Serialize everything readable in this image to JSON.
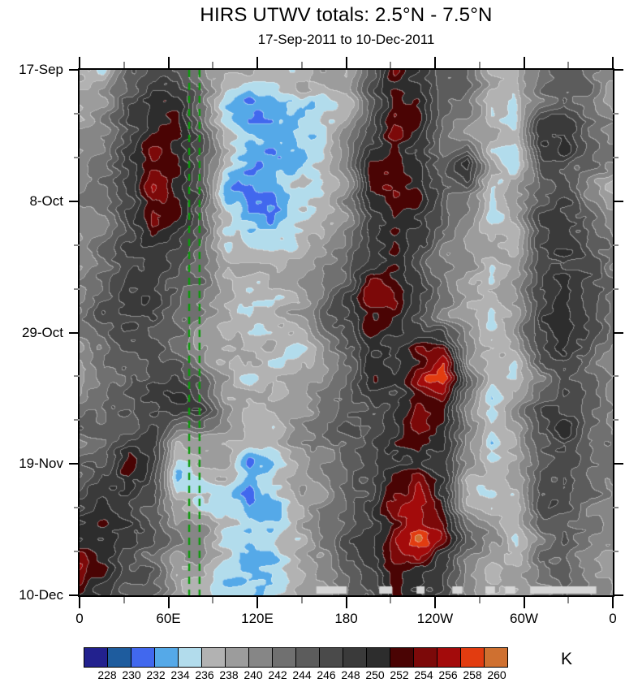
{
  "title": "HIRS UTWV totals: 2.5°N - 7.5°N",
  "subtitle": "17-Sep-2011 to 10-Dec-2011",
  "chart_data": {
    "type": "heatmap",
    "description": "Hovmoller (time-longitude) plot of HIRS upper-tropospheric water vapor brightness temperature totals, 2.5N-7.5N latitude band",
    "x_axis": {
      "range_deg": [
        0,
        360
      ],
      "ticks": [
        {
          "label": "0",
          "deg": 0
        },
        {
          "label": "60E",
          "deg": 60
        },
        {
          "label": "120E",
          "deg": 120
        },
        {
          "label": "180",
          "deg": 180
        },
        {
          "label": "120W",
          "deg": 240
        },
        {
          "label": "60W",
          "deg": 300
        },
        {
          "label": "0",
          "deg": 360
        }
      ],
      "minor_step_deg": 30
    },
    "y_axis": {
      "range_days": [
        0,
        84
      ],
      "ticks": [
        {
          "label": "17-Sep",
          "day": 0
        },
        {
          "label": "8-Oct",
          "day": 21
        },
        {
          "label": "29-Oct",
          "day": 42
        },
        {
          "label": "19-Nov",
          "day": 63
        },
        {
          "label": "10-Dec",
          "day": 84
        }
      ],
      "minor_step_days": 7
    },
    "colorbar": {
      "unit": "K",
      "tick_labels": [
        228,
        230,
        232,
        234,
        236,
        238,
        240,
        242,
        244,
        246,
        248,
        250,
        252,
        254,
        256,
        258,
        260
      ],
      "colors": [
        "#22218e",
        "#1e5c9e",
        "#4168ee",
        "#55a9e8",
        "#b2dcec",
        "#b2b2b2",
        "#9c9c9c",
        "#868686",
        "#707070",
        "#5c5c5c",
        "#4a4a4a",
        "#3a3a3a",
        "#2d2d2d",
        "#4a0404",
        "#7c0909",
        "#a30b0b",
        "#e23c10",
        "#cf7030"
      ]
    },
    "annotations": {
      "green_dashed_lines_lon": [
        74,
        81
      ],
      "green_line_color": "#0c9a0c",
      "missing_data_bars_color": "#d6d6d6",
      "missing_data_bars_x_frac": [
        [
          0.444,
          0.501
        ],
        [
          0.562,
          0.586
        ],
        [
          0.632,
          0.647
        ],
        [
          0.699,
          0.718
        ],
        [
          0.761,
          0.779
        ],
        [
          0.798,
          0.817
        ],
        [
          0.845,
          0.969
        ]
      ]
    },
    "grid": {
      "note": "Approximate brightness-temperature field (K) read off the plot; coarse 18x23 grid, fine mottling is stylistic",
      "lon_deg": [
        0,
        16.4,
        32.7,
        49.1,
        65.5,
        81.8,
        98.2,
        114.5,
        130.9,
        147.3,
        163.6,
        180,
        196.4,
        212.7,
        229.1,
        245.5,
        261.8,
        278.2,
        294.5,
        310.9,
        327.3,
        343.6,
        360
      ],
      "day": [
        0,
        4.9,
        9.9,
        14.8,
        19.8,
        24.7,
        29.6,
        34.6,
        39.5,
        44.5,
        49.4,
        54.4,
        59.3,
        64.2,
        69.2,
        74.1,
        79.1,
        84
      ],
      "values": [
        [
          239,
          237,
          245,
          247,
          246,
          242,
          237,
          236,
          235,
          237,
          238,
          238,
          246,
          253,
          251,
          246,
          244,
          238,
          237,
          242,
          245,
          243,
          241
        ],
        [
          238,
          240,
          246,
          249,
          250,
          244,
          235,
          233,
          234,
          236,
          237,
          239,
          247,
          255,
          252,
          246,
          243,
          236,
          235,
          243,
          247,
          244,
          240
        ],
        [
          240,
          242,
          247,
          250,
          251,
          245,
          236,
          232,
          233,
          235,
          237,
          240,
          248,
          254,
          251,
          245,
          242,
          238,
          237,
          249,
          250,
          245,
          241
        ],
        [
          241,
          244,
          248,
          253,
          252,
          246,
          237,
          233,
          231,
          234,
          236,
          241,
          252,
          254,
          250,
          244,
          252,
          237,
          236,
          245,
          247,
          243,
          241
        ],
        [
          240,
          243,
          249,
          255,
          253,
          247,
          233,
          230,
          232,
          233,
          236,
          242,
          253,
          255,
          251,
          245,
          242,
          236,
          238,
          246,
          248,
          244,
          240
        ],
        [
          239,
          242,
          248,
          253,
          251,
          246,
          237,
          234,
          233,
          235,
          238,
          243,
          251,
          253,
          249,
          244,
          241,
          237,
          239,
          247,
          249,
          245,
          240
        ],
        [
          241,
          245,
          249,
          250,
          248,
          245,
          239,
          236,
          236,
          238,
          240,
          244,
          249,
          251,
          248,
          243,
          240,
          238,
          240,
          248,
          250,
          246,
          242
        ],
        [
          242,
          246,
          248,
          249,
          247,
          244,
          240,
          237,
          238,
          239,
          242,
          246,
          252,
          254,
          249,
          243,
          239,
          237,
          241,
          247,
          249,
          245,
          242
        ],
        [
          243,
          246,
          247,
          248,
          246,
          243,
          239,
          236,
          237,
          240,
          243,
          247,
          253,
          252,
          248,
          242,
          238,
          236,
          240,
          248,
          250,
          246,
          243
        ],
        [
          242,
          245,
          246,
          247,
          245,
          242,
          238,
          235,
          236,
          236,
          239,
          246,
          250,
          251,
          254,
          256,
          243,
          237,
          238,
          246,
          249,
          245,
          242
        ],
        [
          241,
          244,
          246,
          248,
          246,
          243,
          237,
          234,
          235,
          238,
          239,
          245,
          249,
          250,
          255,
          259,
          244,
          236,
          237,
          245,
          248,
          244,
          241
        ],
        [
          242,
          244,
          247,
          249,
          252,
          250,
          241,
          237,
          236,
          238,
          241,
          245,
          248,
          249,
          253,
          251,
          242,
          237,
          239,
          246,
          249,
          245,
          242
        ],
        [
          243,
          245,
          248,
          250,
          240,
          238,
          239,
          236,
          237,
          239,
          242,
          246,
          249,
          250,
          254,
          250,
          241,
          236,
          238,
          247,
          250,
          246,
          243
        ],
        [
          244,
          247,
          253,
          249,
          234,
          235,
          238,
          233,
          235,
          238,
          241,
          245,
          248,
          252,
          254,
          249,
          240,
          236,
          239,
          247,
          249,
          245,
          243
        ],
        [
          246,
          249,
          251,
          247,
          238,
          237,
          236,
          230,
          233,
          237,
          240,
          244,
          247,
          254,
          256,
          252,
          241,
          237,
          238,
          246,
          248,
          244,
          242
        ],
        [
          253,
          254,
          250,
          246,
          240,
          238,
          235,
          233,
          234,
          237,
          240,
          244,
          247,
          253,
          258,
          253,
          242,
          238,
          237,
          245,
          247,
          243,
          241
        ],
        [
          256,
          253,
          248,
          245,
          241,
          239,
          236,
          234,
          235,
          238,
          241,
          245,
          248,
          254,
          253,
          248,
          241,
          238,
          238,
          244,
          246,
          242,
          240
        ],
        [
          252,
          249,
          246,
          244,
          240,
          238,
          237,
          235,
          236,
          238,
          240,
          243,
          246,
          253,
          251,
          246,
          240,
          238,
          239,
          243,
          245,
          242,
          240
        ]
      ]
    }
  }
}
